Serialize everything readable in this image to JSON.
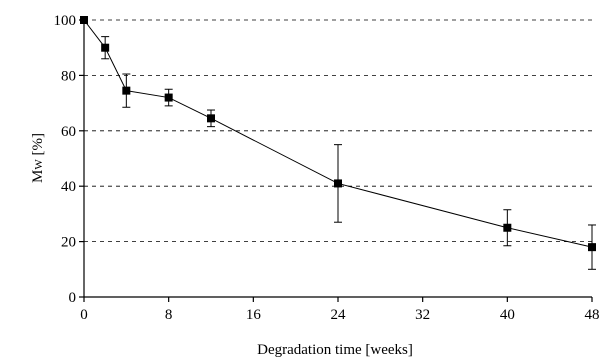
{
  "chart_data": {
    "type": "line",
    "title": "",
    "xlabel": "Degradation time [weeks]",
    "ylabel": "Mw [%]",
    "ylabel_main": "M",
    "ylabel_sub": "W",
    "ylabel_unit": " [%]",
    "xlim": [
      0,
      48
    ],
    "ylim": [
      0,
      100
    ],
    "xticks": [
      0,
      8,
      16,
      24,
      32,
      40,
      48
    ],
    "yticks": [
      0,
      20,
      40,
      60,
      80,
      100
    ],
    "grid": "horizontal-dashed",
    "marker": "square",
    "series": [
      {
        "x": [
          0,
          2,
          4,
          8,
          12,
          24,
          40,
          48
        ],
        "y": [
          100,
          90,
          74.5,
          72,
          64.5,
          41,
          25,
          18
        ],
        "err": [
          0,
          4,
          6,
          3,
          3,
          14,
          6.5,
          8
        ]
      }
    ]
  }
}
